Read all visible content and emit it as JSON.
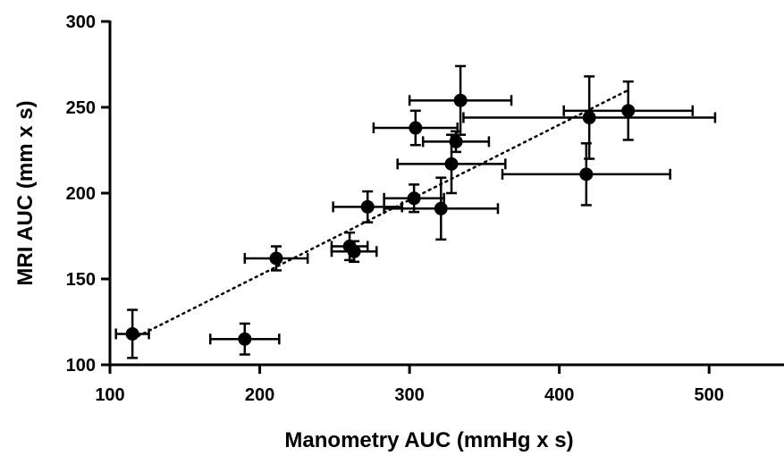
{
  "chart_data": {
    "type": "scatter",
    "xlabel": "Manometry AUC (mmHg x s)",
    "ylabel": "MRI AUC (mm x s)",
    "xlim": [
      100,
      550
    ],
    "ylim": [
      100,
      300
    ],
    "xticks": [
      100,
      200,
      300,
      400,
      500
    ],
    "yticks": [
      100,
      150,
      200,
      250,
      300
    ],
    "grid": false,
    "marker_color": "#000000",
    "points": [
      {
        "x": 115,
        "y": 118,
        "xerr": 11,
        "yerr": 14
      },
      {
        "x": 190,
        "y": 115,
        "xerr": 23,
        "yerr": 9
      },
      {
        "x": 211,
        "y": 162,
        "xerr": 21,
        "yerr": 7
      },
      {
        "x": 260,
        "y": 169,
        "xerr": 12,
        "yerr": 8
      },
      {
        "x": 263,
        "y": 166,
        "xerr": 15,
        "yerr": 6
      },
      {
        "x": 272,
        "y": 192,
        "xerr": 23,
        "yerr": 9
      },
      {
        "x": 303,
        "y": 197,
        "xerr": 20,
        "yerr": 8
      },
      {
        "x": 304,
        "y": 238,
        "xerr": 28,
        "yerr": 10
      },
      {
        "x": 321,
        "y": 191,
        "xerr": 38,
        "yerr": 18
      },
      {
        "x": 328,
        "y": 217,
        "xerr": 36,
        "yerr": 17
      },
      {
        "x": 331,
        "y": 230,
        "xerr": 22,
        "yerr": 6
      },
      {
        "x": 334,
        "y": 254,
        "xerr": 34,
        "yerr": 20
      },
      {
        "x": 418,
        "y": 211,
        "xerr": 56,
        "yerr": 18
      },
      {
        "x": 420,
        "y": 244,
        "xerr": 84,
        "yerr": 24
      },
      {
        "x": 446,
        "y": 248,
        "xerr": 43,
        "yerr": 17
      }
    ],
    "trendline": {
      "style": "dotted",
      "x": [
        115,
        446
      ],
      "y": [
        115,
        260
      ]
    }
  }
}
